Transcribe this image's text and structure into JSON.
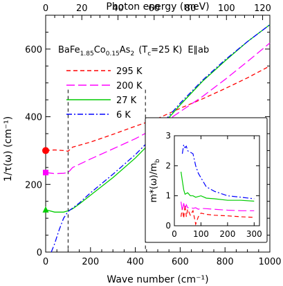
{
  "chart_data": [
    {
      "type": "line",
      "top_axis_label": "Photon energy (meV)",
      "top_ticks": [
        0,
        20,
        40,
        60,
        80,
        100,
        120
      ],
      "top_xlim": [
        0,
        124
      ],
      "xlabel": "Wave number (cm⁻¹)",
      "ylabel": "1/τ(ω)  (cm⁻¹)",
      "xlim": [
        0,
        1000
      ],
      "ylim": [
        0,
        700
      ],
      "x_ticks": [
        0,
        200,
        400,
        600,
        800,
        1000
      ],
      "y_ticks": [
        0,
        200,
        400,
        600
      ],
      "grid": false,
      "legend_position": "upper-left",
      "annotation_parts": {
        "compound": "BaFe",
        "fe_sub": "1.85",
        "co": "Co",
        "co_sub": "0.15",
        "as": "As",
        "as_sub": "2",
        "tc_open": "(T",
        "tc_sub": "c",
        "tc_close": "=25 K)",
        "polarization": "E∥ab"
      },
      "vlines": [
        100,
        445
      ],
      "dc_markers": [
        {
          "color": "#ff0000",
          "shape": "circle",
          "y": 300
        },
        {
          "color": "#ff00ff",
          "shape": "square",
          "y": 235
        },
        {
          "color": "#00cc00",
          "shape": "triangle",
          "y": 125
        }
      ],
      "series": [
        {
          "name": "295 K",
          "color": "#ff0000",
          "dash": "6,4",
          "x": [
            0,
            40,
            80,
            100,
            120,
            200,
            300,
            400,
            500,
            600,
            700,
            800,
            900,
            1000
          ],
          "y": [
            300,
            302,
            300,
            298,
            310,
            325,
            348,
            372,
            395,
            425,
            453,
            483,
            515,
            550
          ]
        },
        {
          "name": "200 K",
          "color": "#ff00ff",
          "dash": "12,5",
          "x": [
            0,
            40,
            80,
            100,
            120,
            200,
            300,
            400,
            500,
            600,
            700,
            800,
            900,
            1000
          ],
          "y": [
            235,
            232,
            233,
            235,
            250,
            275,
            305,
            335,
            370,
            415,
            460,
            510,
            563,
            618
          ]
        },
        {
          "name": "27 K",
          "color": "#00cc00",
          "dash": "",
          "x": [
            0,
            40,
            80,
            100,
            120,
            150,
            200,
            300,
            400,
            445,
            500,
            600,
            700,
            800,
            900,
            1000
          ],
          "y": [
            125,
            118,
            118,
            122,
            128,
            142,
            168,
            220,
            278,
            308,
            360,
            435,
            505,
            565,
            622,
            672
          ]
        },
        {
          "name": "6 K",
          "color": "#0000ff",
          "dash": "8,3,2,3",
          "x": [
            25,
            40,
            60,
            80,
            100,
            120,
            150,
            200,
            300,
            400,
            445,
            500,
            600,
            700,
            800,
            900,
            1000
          ],
          "y": [
            0,
            25,
            65,
            100,
            120,
            130,
            145,
            175,
            230,
            288,
            318,
            365,
            440,
            508,
            568,
            622,
            672
          ]
        }
      ]
    },
    {
      "type": "line",
      "ylabel": "m*(ω)/m♭",
      "ylabel_main": "m*(ω)/m",
      "ylabel_sub": "b",
      "xlim": [
        0,
        320
      ],
      "ylim": [
        0,
        3
      ],
      "x_ticks": [
        0,
        100,
        200,
        300
      ],
      "y_ticks": [
        0,
        1,
        2,
        3
      ],
      "series": [
        {
          "name": "295 K",
          "color": "#ff0000",
          "dash": "6,4",
          "x": [
            25,
            30,
            35,
            40,
            45,
            50,
            60,
            70,
            80,
            90,
            100,
            120,
            150,
            200,
            250,
            300
          ],
          "y": [
            0.3,
            0.6,
            0.25,
            0.7,
            0.3,
            0.55,
            0.35,
            0.5,
            0.05,
            0.3,
            0.42,
            0.38,
            0.35,
            0.33,
            0.3,
            0.28
          ]
        },
        {
          "name": "200 K",
          "color": "#ff00ff",
          "dash": "12,5",
          "x": [
            25,
            30,
            35,
            40,
            45,
            50,
            60,
            70,
            80,
            90,
            100,
            120,
            150,
            200,
            250,
            300
          ],
          "y": [
            0.8,
            0.5,
            0.75,
            0.55,
            0.7,
            0.6,
            0.62,
            0.58,
            0.6,
            0.55,
            0.58,
            0.57,
            0.55,
            0.52,
            0.5,
            0.5
          ]
        },
        {
          "name": "27 K",
          "color": "#00cc00",
          "dash": "",
          "x": [
            25,
            30,
            35,
            40,
            50,
            60,
            70,
            80,
            100,
            120,
            150,
            200,
            250,
            300
          ],
          "y": [
            1.8,
            1.5,
            1.2,
            1.05,
            1.1,
            1.0,
            1.0,
            0.95,
            1.0,
            0.92,
            0.9,
            0.85,
            0.85,
            0.82
          ]
        },
        {
          "name": "6 K",
          "color": "#0000ff",
          "dash": "8,3,2,3",
          "x": [
            30,
            35,
            40,
            45,
            50,
            60,
            70,
            80,
            90,
            100,
            120,
            150,
            200,
            250,
            300
          ],
          "y": [
            2.4,
            2.7,
            2.6,
            2.65,
            2.5,
            2.45,
            2.4,
            2.0,
            1.75,
            1.6,
            1.3,
            1.15,
            1.0,
            0.95,
            0.9
          ]
        }
      ]
    }
  ]
}
